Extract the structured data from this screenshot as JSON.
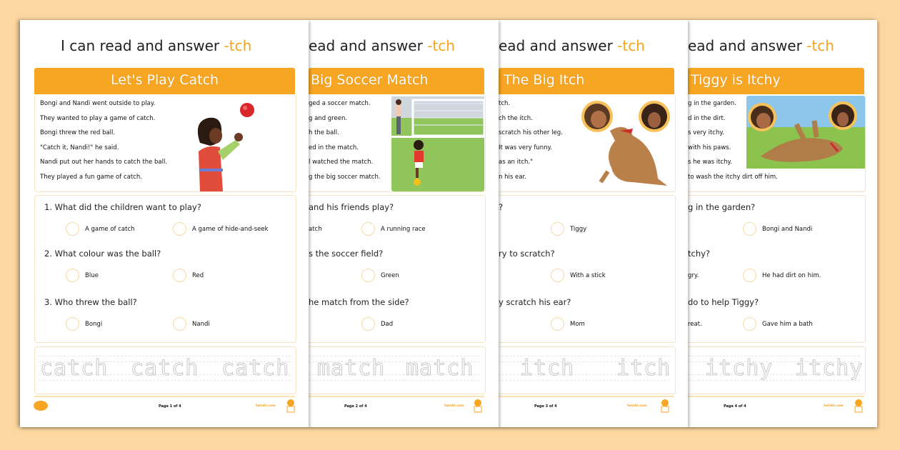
{
  "colors": {
    "background": "#fcd8a0",
    "accent": "#f6a623",
    "circle": "#f5d9a6"
  },
  "pages": [
    {
      "title": "I can read and answer",
      "title_suffix": "-tch",
      "banner": "Let's Play Catch",
      "story": [
        "Bongi and Nandi went outside to play.",
        "They wanted to play a game of catch.",
        "Bongi threw the red ball.",
        "\"Catch it, Nandi!\" he said.",
        "Nandi put out her hands to catch the ball.",
        "They played a fun game of catch."
      ],
      "questions": [
        {
          "q": "1. What did the children want to play?",
          "options": [
            "A game of catch",
            "A game of hide-and-seek"
          ]
        },
        {
          "q": "2. What colour was the ball?",
          "options": [
            "Blue",
            "Red"
          ]
        },
        {
          "q": "3. Who threw the ball?",
          "options": [
            "Bongi",
            "Nandi"
          ]
        }
      ],
      "trace_words": [
        "catch",
        "catch",
        "catch"
      ],
      "footer_page": "Page 1 of 4",
      "footer_brand": "twinkl.com",
      "image": "boy-catching-ball"
    },
    {
      "title": "ead and answer",
      "title_suffix": "-tch",
      "banner": "Big Soccer Match",
      "story": [
        "ged a soccer match.",
        "g and green.",
        "h the ball.",
        "ed in the match.",
        "l watched the match.",
        "g the big soccer match."
      ],
      "questions": [
        {
          "q": "and his friends play?",
          "options": [
            "atch",
            "A running race"
          ]
        },
        {
          "q": "s the soccer field?",
          "options": [
            null,
            "Green"
          ]
        },
        {
          "q": "he match from the side?",
          "options": [
            null,
            "Dad"
          ]
        }
      ],
      "trace_words": [
        "match",
        "match"
      ],
      "footer_page": "Page 2 of 4",
      "footer_brand": "twinkl.com",
      "image": "soccer-field"
    },
    {
      "title": "ead and answer",
      "title_suffix": "-tch",
      "banner": "The Big Itch",
      "story": [
        "tch.",
        "ch the itch.",
        "scratch his other leg.",
        "It was very funny.",
        "as an itch.\"",
        "n his ear."
      ],
      "questions": [
        {
          "q": "?",
          "options": [
            null,
            "Tiggy"
          ]
        },
        {
          "q": "ry to scratch?",
          "options": [
            null,
            "With a stick"
          ]
        },
        {
          "q": "y scratch his ear?",
          "options": [
            null,
            "Mom"
          ]
        }
      ],
      "trace_words": [
        "itch",
        "itch"
      ],
      "footer_page": "Page 3 of 4",
      "footer_brand": "twinkl.com",
      "image": "dog-scratching"
    },
    {
      "title": "ead and answer",
      "title_suffix": "-tch",
      "banner": "Tiggy is Itchy",
      "story": [
        "g in the garden.",
        "d in the dirt.",
        "s very itchy.",
        "with his paws.",
        "s he was itchy.",
        "to wash the itchy dirt off him."
      ],
      "questions": [
        {
          "q": "g in the garden?",
          "options": [
            null,
            "Bongi and Nandi"
          ]
        },
        {
          "q": "tchy?",
          "options": [
            "gry.",
            "He had dirt on him."
          ]
        },
        {
          "q": "do to help Tiggy?",
          "options": [
            "reat.",
            "Gave him a bath"
          ]
        }
      ],
      "trace_words": [
        "itchy",
        "itchy"
      ],
      "footer_page": "Page 4 of 4",
      "footer_brand": "twinkl.com",
      "image": "dog-rolling-garden"
    }
  ]
}
